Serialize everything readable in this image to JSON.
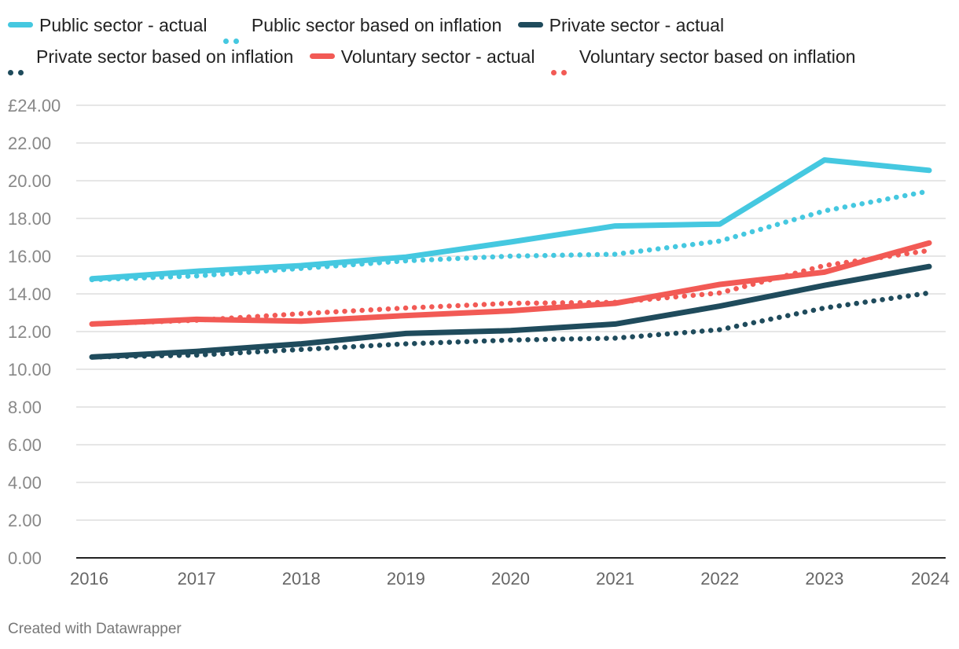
{
  "chart_data": {
    "type": "line",
    "title": "",
    "xlabel": "",
    "ylabel": "",
    "categories": [
      "2016",
      "2017",
      "2018",
      "2019",
      "2020",
      "2021",
      "2022",
      "2023",
      "2024"
    ],
    "y_ticks": [
      "£24.00",
      "22.00",
      "20.00",
      "18.00",
      "16.00",
      "14.00",
      "12.00",
      "10.00",
      "8.00",
      "6.00",
      "4.00",
      "2.00",
      "0.00"
    ],
    "y_tick_values": [
      24,
      22,
      20,
      18,
      16,
      14,
      12,
      10,
      8,
      6,
      4,
      2,
      0
    ],
    "ylim": [
      0,
      24
    ],
    "grid": true,
    "legend_position": "top",
    "series": [
      {
        "name": "Public sector - actual",
        "color": "#45c8e0",
        "style": "solid",
        "values": [
          14.8,
          15.2,
          15.5,
          15.95,
          16.75,
          17.6,
          17.7,
          21.1,
          20.55
        ]
      },
      {
        "name": "Public sector based on inflation",
        "color": "#45c8e0",
        "style": "dotted",
        "values": [
          14.75,
          14.95,
          15.35,
          15.75,
          16.0,
          16.1,
          16.8,
          18.4,
          19.45
        ]
      },
      {
        "name": "Private sector - actual",
        "color": "#1f4b5c",
        "style": "solid",
        "values": [
          10.65,
          10.95,
          11.35,
          11.9,
          12.05,
          12.4,
          13.35,
          14.45,
          15.45
        ]
      },
      {
        "name": "Private sector based on inflation",
        "color": "#1f4b5c",
        "style": "dotted",
        "values": [
          10.65,
          10.75,
          11.05,
          11.35,
          11.55,
          11.65,
          12.1,
          13.25,
          14.05
        ]
      },
      {
        "name": "Voluntary sector - actual",
        "color": "#f25a55",
        "style": "solid",
        "values": [
          12.4,
          12.65,
          12.55,
          12.85,
          13.1,
          13.5,
          14.5,
          15.15,
          16.7
        ]
      },
      {
        "name": "Voluntary sector based on inflation",
        "color": "#f25a55",
        "style": "dotted",
        "values": [
          12.4,
          12.6,
          12.95,
          13.25,
          13.5,
          13.55,
          14.05,
          15.5,
          16.3
        ]
      }
    ]
  },
  "footer": {
    "credit": "Created with Datawrapper"
  }
}
